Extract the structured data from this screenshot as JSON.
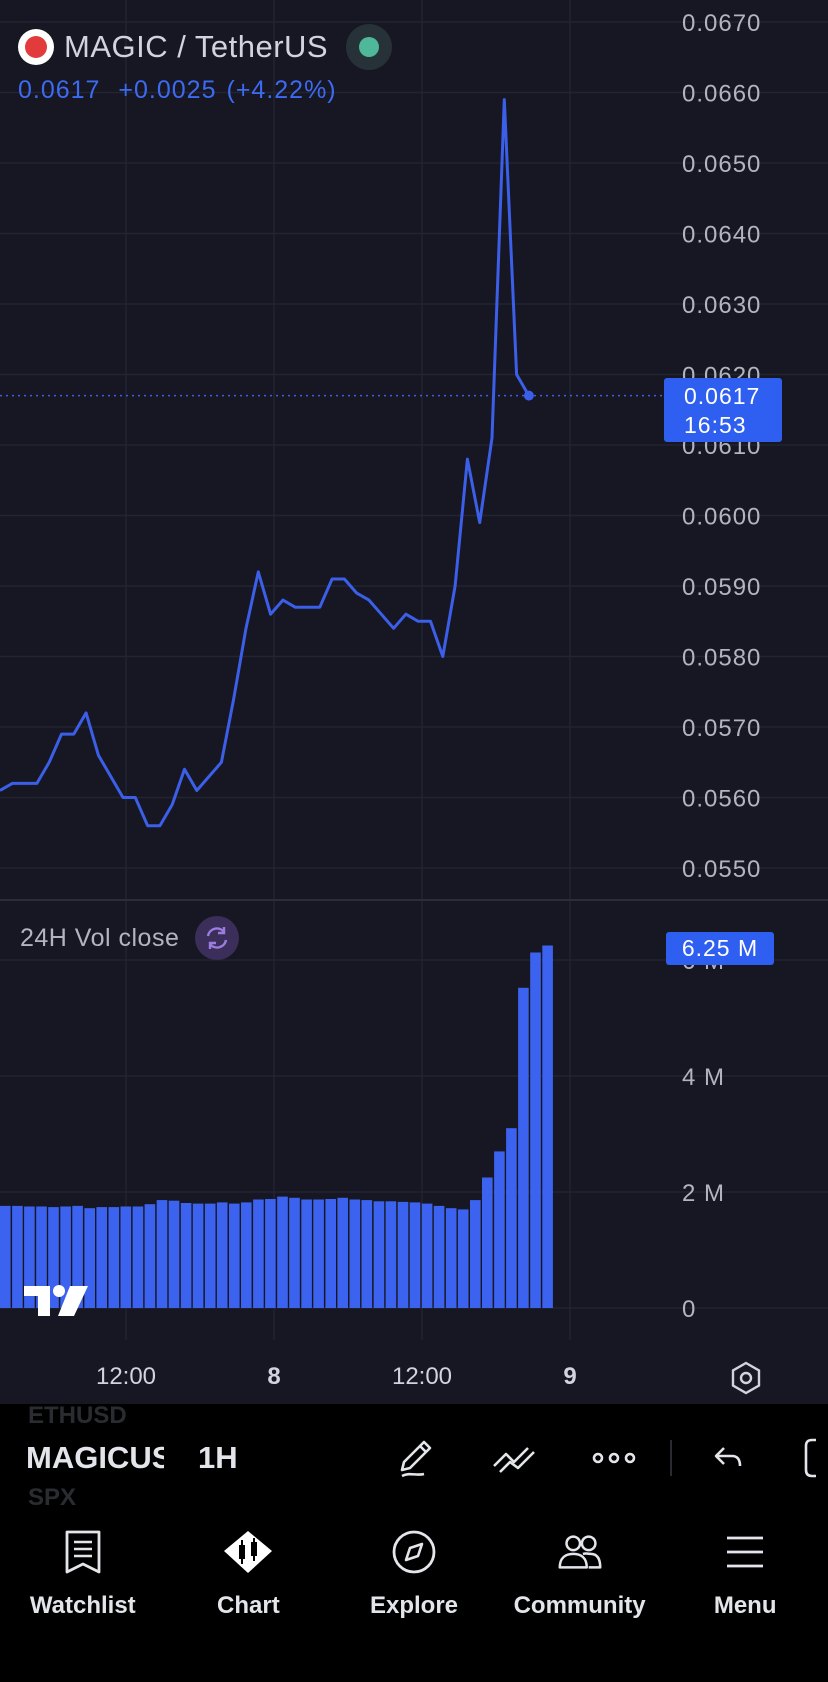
{
  "header": {
    "symbol_title": "MAGIC / TetherUS",
    "last_price": "0.0617",
    "change_abs": "+0.0025",
    "change_pct": "(+4.22%)"
  },
  "price_badge": {
    "price": "0.0617",
    "countdown": "16:53"
  },
  "volume_legend": {
    "label": "24H Vol close"
  },
  "volume_badge": {
    "value": "6.25 M"
  },
  "colors": {
    "accent": "#3d6af2",
    "line": "#3b5fe8",
    "volume_bar": "#3c63f0",
    "status_dot": "#4fb89a",
    "background": "#161722"
  },
  "chart_data": [
    {
      "type": "line",
      "title": "MAGIC / TetherUS",
      "xlabel": "",
      "ylabel": "",
      "ylim": [
        0.0545,
        0.0672
      ],
      "x_tick_labels": [
        "12:00",
        "8",
        "12:00",
        "9"
      ],
      "y_tick_labels": [
        "0.0670",
        "0.0660",
        "0.0650",
        "0.0640",
        "0.0630",
        "0.0620",
        "0.0610",
        "0.0600",
        "0.0590",
        "0.0580",
        "0.0570",
        "0.0560",
        "0.0550"
      ],
      "grid": true,
      "series": [
        {
          "values": [
            0.0561,
            0.0562,
            0.0562,
            0.0562,
            0.0565,
            0.0569,
            0.0569,
            0.0572,
            0.0566,
            0.0563,
            0.056,
            0.056,
            0.0556,
            0.0556,
            0.0559,
            0.0564,
            0.0561,
            0.0563,
            0.0565,
            0.0574,
            0.0584,
            0.0592,
            0.0586,
            0.0588,
            0.0587,
            0.0587,
            0.0587,
            0.0591,
            0.0591,
            0.0589,
            0.0588,
            0.0586,
            0.0584,
            0.0586,
            0.0585,
            0.0585,
            0.058,
            0.059,
            0.0608,
            0.0599,
            0.0611,
            0.0659,
            0.062,
            0.0617
          ]
        }
      ]
    },
    {
      "type": "bar",
      "title": "24H Vol close",
      "ylim": [
        0,
        6.6
      ],
      "y_unit": "M",
      "y_tick_labels": [
        "0",
        "2 M",
        "4 M",
        "6 M"
      ],
      "series": [
        {
          "values": [
            1.76,
            1.76,
            1.75,
            1.75,
            1.74,
            1.75,
            1.76,
            1.72,
            1.74,
            1.74,
            1.75,
            1.75,
            1.79,
            1.86,
            1.85,
            1.81,
            1.8,
            1.8,
            1.82,
            1.8,
            1.82,
            1.87,
            1.88,
            1.92,
            1.9,
            1.87,
            1.87,
            1.88,
            1.9,
            1.87,
            1.86,
            1.84,
            1.84,
            1.83,
            1.82,
            1.8,
            1.76,
            1.72,
            1.7,
            1.86,
            2.25,
            2.7,
            3.1,
            5.52,
            6.13,
            6.25
          ]
        }
      ]
    }
  ],
  "toolbar": {
    "symbol": "MAGICUSDT",
    "interval": "1H",
    "ghost_top": "ETHUSD",
    "ghost_bottom": "SPX"
  },
  "nav": {
    "items": [
      {
        "label": "Watchlist",
        "icon": "watchlist-icon"
      },
      {
        "label": "Chart",
        "icon": "chart-icon"
      },
      {
        "label": "Explore",
        "icon": "compass-icon"
      },
      {
        "label": "Community",
        "icon": "community-icon"
      },
      {
        "label": "Menu",
        "icon": "menu-icon"
      }
    ]
  }
}
